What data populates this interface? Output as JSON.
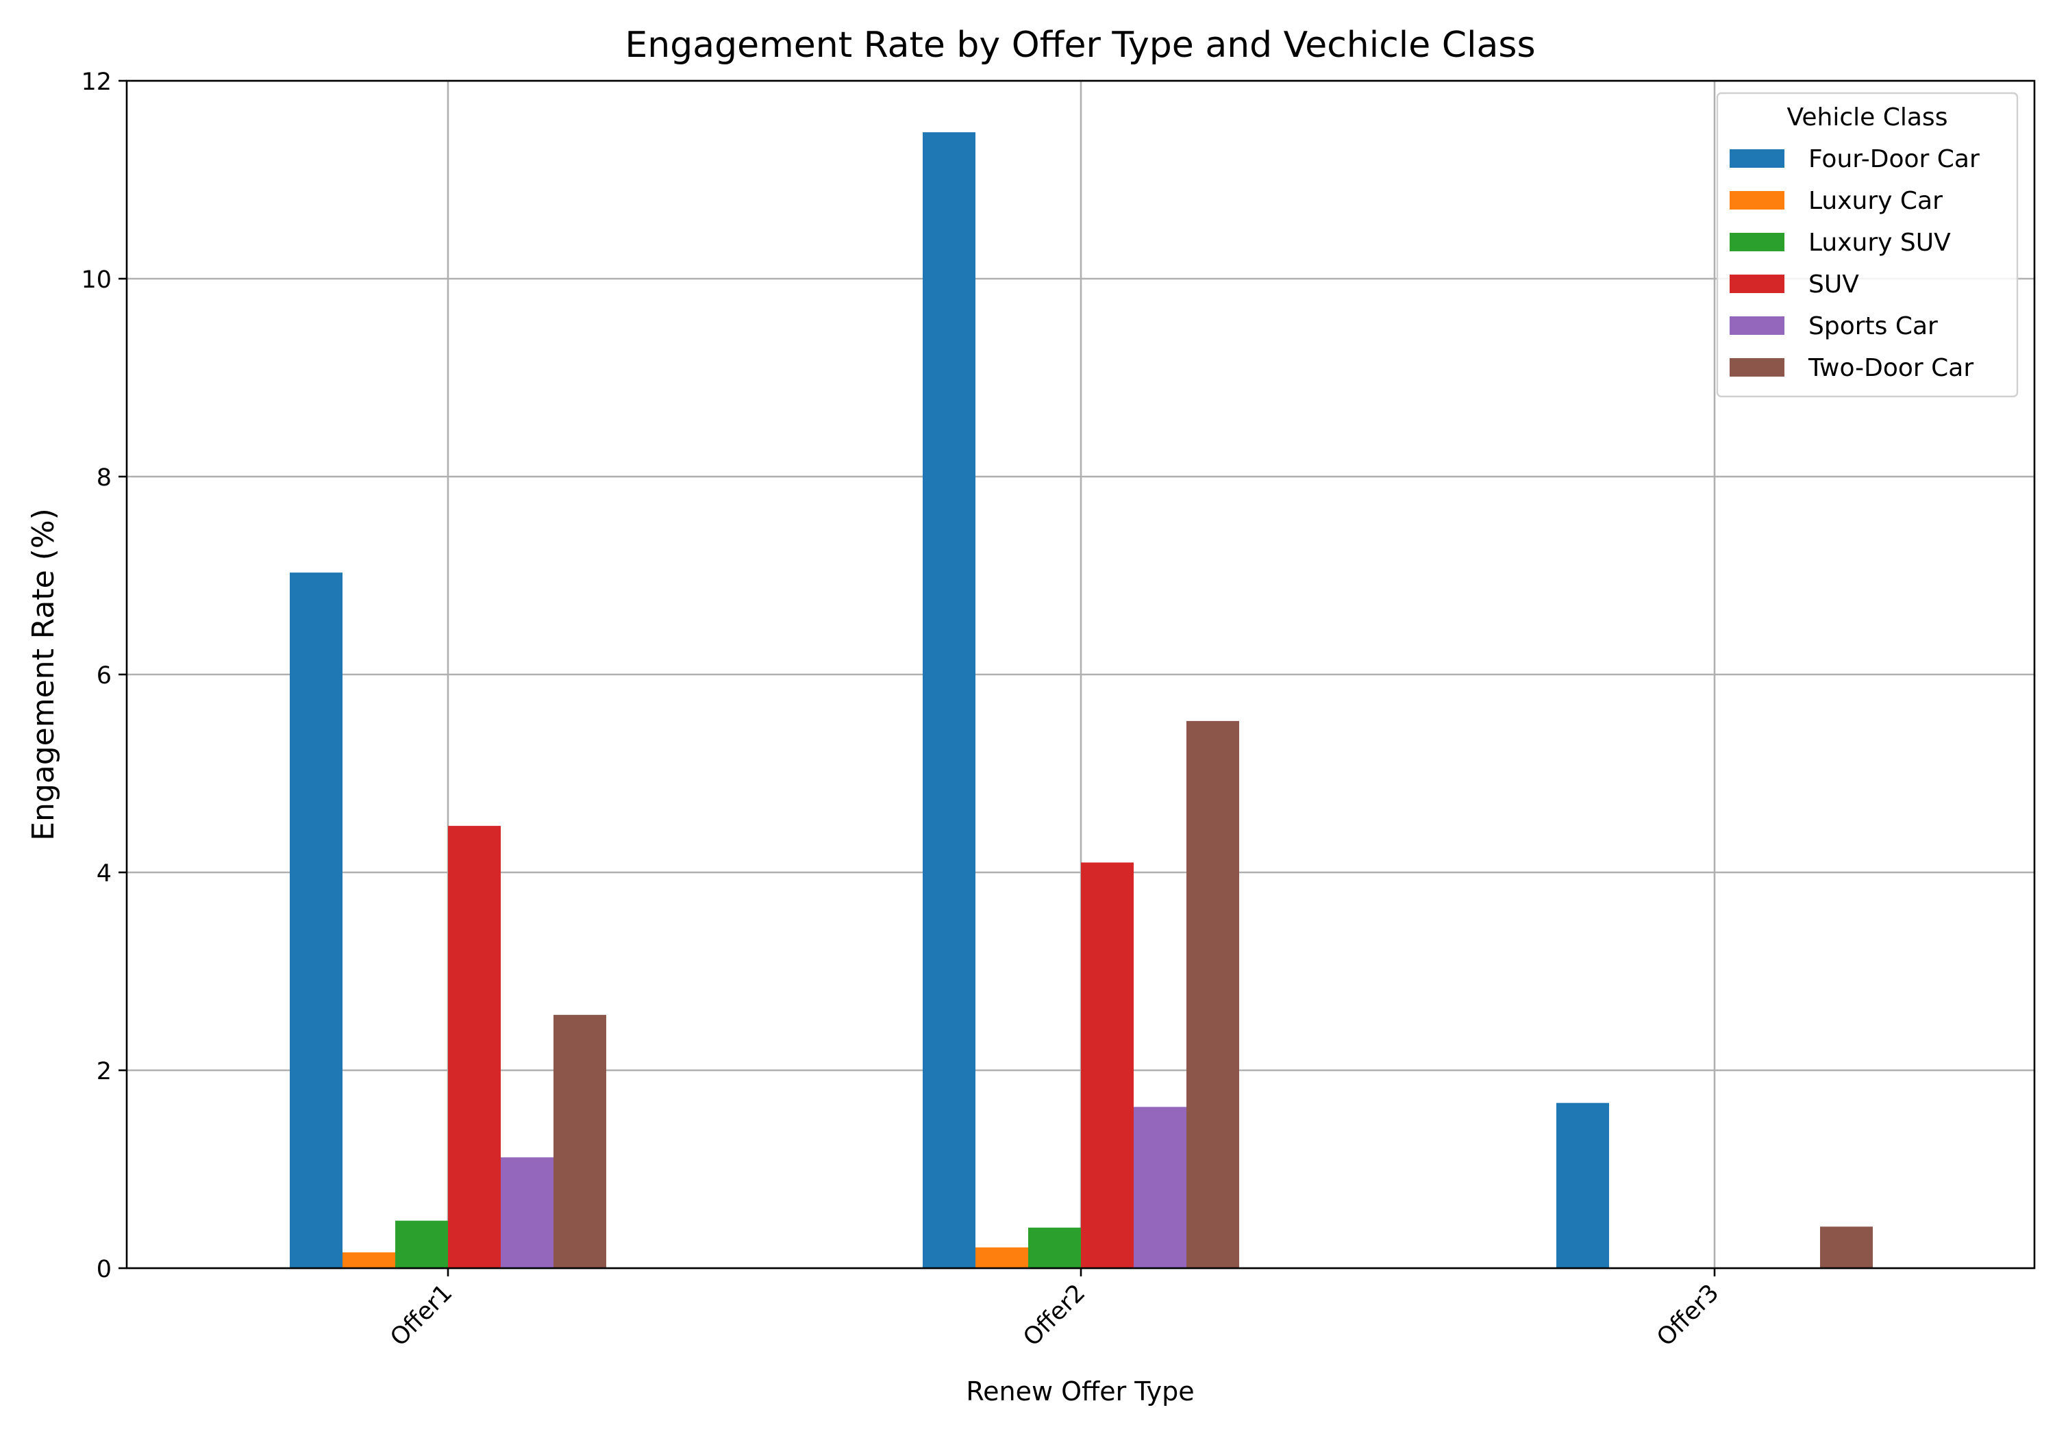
{
  "chart_data": {
    "type": "bar",
    "title": "Engagement Rate by Offer Type and Vechicle Class",
    "xlabel": "Renew Offer Type",
    "ylabel": "Engagement Rate (%)",
    "categories": [
      "Offer1",
      "Offer2",
      "Offer3"
    ],
    "ylim": [
      0,
      12
    ],
    "yticks": [
      0,
      2,
      4,
      6,
      8,
      10,
      12
    ],
    "grid": true,
    "legend_title": "Vehicle Class",
    "legend_position": "top-right",
    "series": [
      {
        "name": "Four-Door Car",
        "color": "#1f77b4",
        "values": [
          7.03,
          11.48,
          1.67
        ]
      },
      {
        "name": "Luxury Car",
        "color": "#ff7f0e",
        "values": [
          0.16,
          0.21,
          0
        ]
      },
      {
        "name": "Luxury SUV",
        "color": "#2ca02c",
        "values": [
          0.48,
          0.41,
          0
        ]
      },
      {
        "name": "SUV",
        "color": "#d62728",
        "values": [
          4.47,
          4.1,
          0
        ]
      },
      {
        "name": "Sports Car",
        "color": "#9467bd",
        "values": [
          1.12,
          1.63,
          0
        ]
      },
      {
        "name": "Two-Door Car",
        "color": "#8c564b",
        "values": [
          2.56,
          5.53,
          0.42
        ]
      }
    ]
  }
}
